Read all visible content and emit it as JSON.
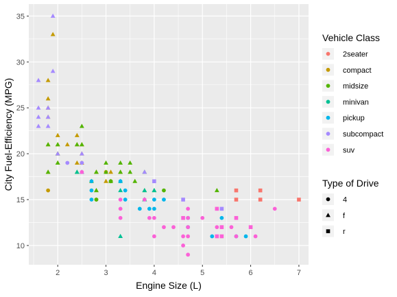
{
  "chart_data": {
    "type": "scatter",
    "xlabel": "Engine Size (L)",
    "ylabel": "City Fuel-Efficiency (MPG)",
    "xlim": [
      1.4,
      7.2
    ],
    "ylim": [
      7.9,
      36.3
    ],
    "x_ticks": [
      2,
      3,
      4,
      5,
      6,
      7
    ],
    "y_ticks": [
      10,
      15,
      20,
      25,
      30,
      35
    ],
    "grid": true,
    "legend_placement": "right",
    "color_legend": {
      "title": "Vehicle Class",
      "entries": [
        {
          "label": "2seater",
          "color": "#F8766D"
        },
        {
          "label": "compact",
          "color": "#C49A00"
        },
        {
          "label": "midsize",
          "color": "#53B400"
        },
        {
          "label": "minivan",
          "color": "#00C094"
        },
        {
          "label": "pickup",
          "color": "#00B6EB"
        },
        {
          "label": "subcompact",
          "color": "#A58AFF"
        },
        {
          "label": "suv",
          "color": "#FB61D7"
        }
      ]
    },
    "shape_legend": {
      "title": "Type of Drive",
      "entries": [
        {
          "label": "4",
          "shape": "circle"
        },
        {
          "label": "f",
          "shape": "triangle"
        },
        {
          "label": "r",
          "shape": "square"
        }
      ]
    },
    "points": [
      {
        "x": 5.7,
        "y": 16,
        "class": "2seater",
        "drive": "r"
      },
      {
        "x": 5.7,
        "y": 15,
        "class": "2seater",
        "drive": "r"
      },
      {
        "x": 6.2,
        "y": 16,
        "class": "2seater",
        "drive": "r"
      },
      {
        "x": 6.2,
        "y": 15,
        "class": "2seater",
        "drive": "r"
      },
      {
        "x": 7.0,
        "y": 15,
        "class": "2seater",
        "drive": "r"
      },
      {
        "x": 1.8,
        "y": 18,
        "class": "compact",
        "drive": "f"
      },
      {
        "x": 1.8,
        "y": 21,
        "class": "compact",
        "drive": "f"
      },
      {
        "x": 2.0,
        "y": 20,
        "class": "compact",
        "drive": "f"
      },
      {
        "x": 2.0,
        "y": 21,
        "class": "compact",
        "drive": "f"
      },
      {
        "x": 2.8,
        "y": 16,
        "class": "compact",
        "drive": "f"
      },
      {
        "x": 2.8,
        "y": 18,
        "class": "compact",
        "drive": "f"
      },
      {
        "x": 3.1,
        "y": 18,
        "class": "compact",
        "drive": "f"
      },
      {
        "x": 1.8,
        "y": 16,
        "class": "compact",
        "drive": "4"
      },
      {
        "x": 2.0,
        "y": 19,
        "class": "compact",
        "drive": "f"
      },
      {
        "x": 2.8,
        "y": 15,
        "class": "compact",
        "drive": "4"
      },
      {
        "x": 3.1,
        "y": 17,
        "class": "compact",
        "drive": "4"
      },
      {
        "x": 1.8,
        "y": 26,
        "class": "compact",
        "drive": "f"
      },
      {
        "x": 1.8,
        "y": 25,
        "class": "compact",
        "drive": "f"
      },
      {
        "x": 1.8,
        "y": 28,
        "class": "compact",
        "drive": "f"
      },
      {
        "x": 1.8,
        "y": 24,
        "class": "compact",
        "drive": "f"
      },
      {
        "x": 1.9,
        "y": 33,
        "class": "compact",
        "drive": "f"
      },
      {
        "x": 2.0,
        "y": 22,
        "class": "compact",
        "drive": "f"
      },
      {
        "x": 2.2,
        "y": 21,
        "class": "compact",
        "drive": "f"
      },
      {
        "x": 2.4,
        "y": 21,
        "class": "compact",
        "drive": "f"
      },
      {
        "x": 2.4,
        "y": 22,
        "class": "compact",
        "drive": "f"
      },
      {
        "x": 2.5,
        "y": 21,
        "class": "compact",
        "drive": "f"
      },
      {
        "x": 2.4,
        "y": 19,
        "class": "compact",
        "drive": "f"
      },
      {
        "x": 2.5,
        "y": 20,
        "class": "compact",
        "drive": "f"
      },
      {
        "x": 2.5,
        "y": 19,
        "class": "compact",
        "drive": "f"
      },
      {
        "x": 3.0,
        "y": 17,
        "class": "compact",
        "drive": "f"
      },
      {
        "x": 3.3,
        "y": 18,
        "class": "compact",
        "drive": "f"
      },
      {
        "x": 3.0,
        "y": 18,
        "class": "compact",
        "drive": "4"
      },
      {
        "x": 1.8,
        "y": 21,
        "class": "midsize",
        "drive": "f"
      },
      {
        "x": 2.0,
        "y": 21,
        "class": "midsize",
        "drive": "f"
      },
      {
        "x": 2.0,
        "y": 19,
        "class": "midsize",
        "drive": "f"
      },
      {
        "x": 2.4,
        "y": 18,
        "class": "midsize",
        "drive": "f"
      },
      {
        "x": 2.4,
        "y": 21,
        "class": "midsize",
        "drive": "f"
      },
      {
        "x": 2.5,
        "y": 23,
        "class": "midsize",
        "drive": "f"
      },
      {
        "x": 2.5,
        "y": 21,
        "class": "midsize",
        "drive": "f"
      },
      {
        "x": 2.5,
        "y": 18,
        "class": "midsize",
        "drive": "f"
      },
      {
        "x": 2.7,
        "y": 17,
        "class": "midsize",
        "drive": "f"
      },
      {
        "x": 2.8,
        "y": 18,
        "class": "midsize",
        "drive": "f"
      },
      {
        "x": 2.8,
        "y": 16,
        "class": "midsize",
        "drive": "f"
      },
      {
        "x": 3.0,
        "y": 18,
        "class": "midsize",
        "drive": "f"
      },
      {
        "x": 3.0,
        "y": 19,
        "class": "midsize",
        "drive": "f"
      },
      {
        "x": 3.1,
        "y": 17,
        "class": "midsize",
        "drive": "f"
      },
      {
        "x": 3.3,
        "y": 19,
        "class": "midsize",
        "drive": "f"
      },
      {
        "x": 3.3,
        "y": 18,
        "class": "midsize",
        "drive": "f"
      },
      {
        "x": 3.5,
        "y": 19,
        "class": "midsize",
        "drive": "f"
      },
      {
        "x": 3.5,
        "y": 18,
        "class": "midsize",
        "drive": "f"
      },
      {
        "x": 3.6,
        "y": 17,
        "class": "midsize",
        "drive": "f"
      },
      {
        "x": 3.8,
        "y": 18,
        "class": "midsize",
        "drive": "f"
      },
      {
        "x": 3.8,
        "y": 16,
        "class": "midsize",
        "drive": "f"
      },
      {
        "x": 3.8,
        "y": 15,
        "class": "midsize",
        "drive": "f"
      },
      {
        "x": 4.0,
        "y": 16,
        "class": "midsize",
        "drive": "f"
      },
      {
        "x": 5.3,
        "y": 16,
        "class": "midsize",
        "drive": "f"
      },
      {
        "x": 2.8,
        "y": 15,
        "class": "midsize",
        "drive": "4"
      },
      {
        "x": 3.1,
        "y": 17,
        "class": "midsize",
        "drive": "4"
      },
      {
        "x": 4.2,
        "y": 16,
        "class": "midsize",
        "drive": "4"
      },
      {
        "x": 1.8,
        "y": 18,
        "class": "midsize",
        "drive": "f"
      },
      {
        "x": 2.0,
        "y": 20,
        "class": "midsize",
        "drive": "f"
      },
      {
        "x": 3.3,
        "y": 17,
        "class": "minivan",
        "drive": "f"
      },
      {
        "x": 3.3,
        "y": 16,
        "class": "minivan",
        "drive": "f"
      },
      {
        "x": 3.3,
        "y": 11,
        "class": "minivan",
        "drive": "f"
      },
      {
        "x": 3.8,
        "y": 16,
        "class": "minivan",
        "drive": "f"
      },
      {
        "x": 3.8,
        "y": 15,
        "class": "minivan",
        "drive": "f"
      },
      {
        "x": 4.0,
        "y": 16,
        "class": "minivan",
        "drive": "f"
      },
      {
        "x": 2.4,
        "y": 18,
        "class": "minivan",
        "drive": "f"
      },
      {
        "x": 2.7,
        "y": 16,
        "class": "pickup",
        "drive": "4"
      },
      {
        "x": 2.7,
        "y": 15,
        "class": "pickup",
        "drive": "4"
      },
      {
        "x": 2.7,
        "y": 17,
        "class": "pickup",
        "drive": "4"
      },
      {
        "x": 3.4,
        "y": 15,
        "class": "pickup",
        "drive": "4"
      },
      {
        "x": 3.4,
        "y": 16,
        "class": "pickup",
        "drive": "4"
      },
      {
        "x": 3.7,
        "y": 14,
        "class": "pickup",
        "drive": "4"
      },
      {
        "x": 3.9,
        "y": 14,
        "class": "pickup",
        "drive": "4"
      },
      {
        "x": 4.0,
        "y": 15,
        "class": "pickup",
        "drive": "4"
      },
      {
        "x": 4.0,
        "y": 14,
        "class": "pickup",
        "drive": "4"
      },
      {
        "x": 4.2,
        "y": 15,
        "class": "pickup",
        "drive": "4"
      },
      {
        "x": 4.7,
        "y": 12,
        "class": "pickup",
        "drive": "4"
      },
      {
        "x": 4.7,
        "y": 13,
        "class": "pickup",
        "drive": "4"
      },
      {
        "x": 5.2,
        "y": 11,
        "class": "pickup",
        "drive": "4"
      },
      {
        "x": 5.4,
        "y": 13,
        "class": "pickup",
        "drive": "4"
      },
      {
        "x": 5.7,
        "y": 11,
        "class": "pickup",
        "drive": "4"
      },
      {
        "x": 5.9,
        "y": 11,
        "class": "pickup",
        "drive": "4"
      },
      {
        "x": 3.3,
        "y": 17,
        "class": "pickup",
        "drive": "4"
      },
      {
        "x": 1.6,
        "y": 28,
        "class": "subcompact",
        "drive": "f"
      },
      {
        "x": 1.6,
        "y": 25,
        "class": "subcompact",
        "drive": "f"
      },
      {
        "x": 1.6,
        "y": 24,
        "class": "subcompact",
        "drive": "f"
      },
      {
        "x": 1.6,
        "y": 23,
        "class": "subcompact",
        "drive": "f"
      },
      {
        "x": 1.8,
        "y": 25,
        "class": "subcompact",
        "drive": "f"
      },
      {
        "x": 1.8,
        "y": 24,
        "class": "subcompact",
        "drive": "f"
      },
      {
        "x": 1.8,
        "y": 23,
        "class": "subcompact",
        "drive": "f"
      },
      {
        "x": 1.9,
        "y": 35,
        "class": "subcompact",
        "drive": "f"
      },
      {
        "x": 1.9,
        "y": 29,
        "class": "subcompact",
        "drive": "f"
      },
      {
        "x": 2.0,
        "y": 20,
        "class": "subcompact",
        "drive": "f"
      },
      {
        "x": 2.5,
        "y": 20,
        "class": "subcompact",
        "drive": "f"
      },
      {
        "x": 2.5,
        "y": 19,
        "class": "subcompact",
        "drive": "4"
      },
      {
        "x": 2.2,
        "y": 19,
        "class": "subcompact",
        "drive": "4"
      },
      {
        "x": 2.5,
        "y": 18,
        "class": "subcompact",
        "drive": "f"
      },
      {
        "x": 3.8,
        "y": 18,
        "class": "subcompact",
        "drive": "f"
      },
      {
        "x": 4.0,
        "y": 17,
        "class": "subcompact",
        "drive": "r"
      },
      {
        "x": 4.6,
        "y": 15,
        "class": "subcompact",
        "drive": "r"
      },
      {
        "x": 5.4,
        "y": 14,
        "class": "subcompact",
        "drive": "r"
      },
      {
        "x": 2.5,
        "y": 18,
        "class": "suv",
        "drive": "4"
      },
      {
        "x": 3.3,
        "y": 15,
        "class": "suv",
        "drive": "4"
      },
      {
        "x": 3.3,
        "y": 14,
        "class": "suv",
        "drive": "4"
      },
      {
        "x": 3.3,
        "y": 13,
        "class": "suv",
        "drive": "4"
      },
      {
        "x": 3.8,
        "y": 15,
        "class": "suv",
        "drive": "4"
      },
      {
        "x": 3.9,
        "y": 13,
        "class": "suv",
        "drive": "4"
      },
      {
        "x": 4.0,
        "y": 13,
        "class": "suv",
        "drive": "4"
      },
      {
        "x": 4.0,
        "y": 11,
        "class": "suv",
        "drive": "4"
      },
      {
        "x": 4.2,
        "y": 12,
        "class": "suv",
        "drive": "4"
      },
      {
        "x": 4.4,
        "y": 12,
        "class": "suv",
        "drive": "4"
      },
      {
        "x": 4.6,
        "y": 11,
        "class": "suv",
        "drive": "4"
      },
      {
        "x": 4.6,
        "y": 10,
        "class": "suv",
        "drive": "4"
      },
      {
        "x": 4.6,
        "y": 13,
        "class": "suv",
        "drive": "r"
      },
      {
        "x": 4.7,
        "y": 14,
        "class": "suv",
        "drive": "4"
      },
      {
        "x": 4.7,
        "y": 13,
        "class": "suv",
        "drive": "4"
      },
      {
        "x": 4.7,
        "y": 9,
        "class": "suv",
        "drive": "4"
      },
      {
        "x": 4.7,
        "y": 11,
        "class": "suv",
        "drive": "4"
      },
      {
        "x": 4.7,
        "y": 12,
        "class": "suv",
        "drive": "4"
      },
      {
        "x": 5.0,
        "y": 13,
        "class": "suv",
        "drive": "4"
      },
      {
        "x": 5.3,
        "y": 14,
        "class": "suv",
        "drive": "r"
      },
      {
        "x": 5.3,
        "y": 11,
        "class": "suv",
        "drive": "r"
      },
      {
        "x": 5.4,
        "y": 11,
        "class": "suv",
        "drive": "r"
      },
      {
        "x": 5.4,
        "y": 12,
        "class": "suv",
        "drive": "r"
      },
      {
        "x": 5.7,
        "y": 13,
        "class": "suv",
        "drive": "r"
      },
      {
        "x": 5.3,
        "y": 12,
        "class": "suv",
        "drive": "4"
      },
      {
        "x": 5.6,
        "y": 12,
        "class": "suv",
        "drive": "4"
      },
      {
        "x": 5.7,
        "y": 11,
        "class": "suv",
        "drive": "4"
      },
      {
        "x": 6.0,
        "y": 12,
        "class": "suv",
        "drive": "r"
      },
      {
        "x": 6.1,
        "y": 11,
        "class": "suv",
        "drive": "4"
      },
      {
        "x": 6.5,
        "y": 14,
        "class": "suv",
        "drive": "4"
      }
    ]
  }
}
